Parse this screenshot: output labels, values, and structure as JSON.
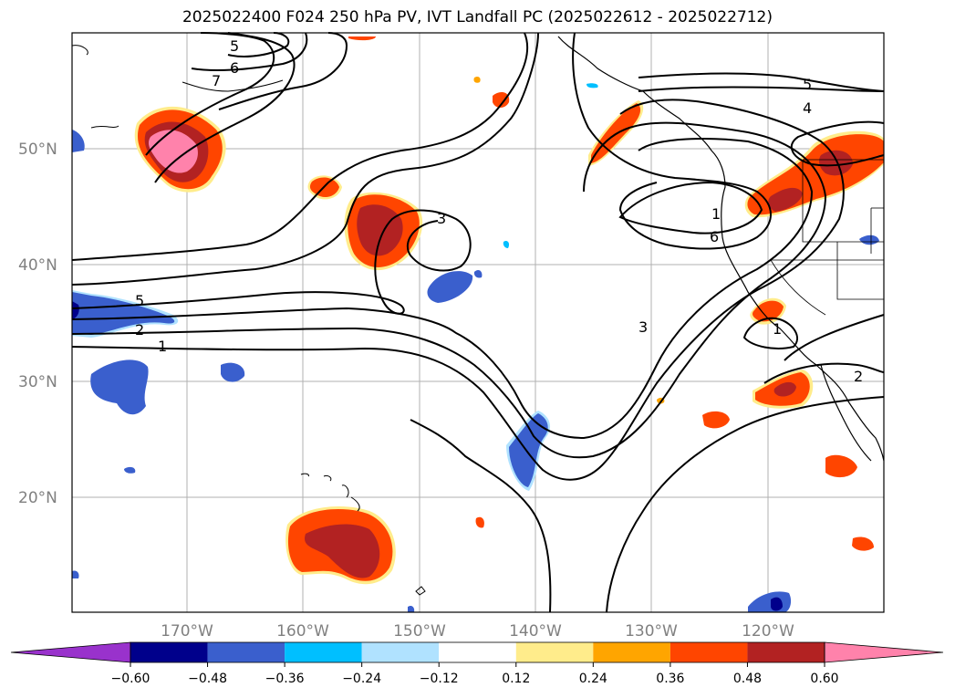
{
  "title": "2025022400 F024 250 hPa PV, IVT Landfall PC (2025022612 - 2025022712)",
  "lat_labels": [
    "50°N",
    "40°N",
    "30°N",
    "20°N"
  ],
  "lon_labels": [
    "170°W",
    "160°W",
    "150°W",
    "140°W",
    "130°W",
    "120°W"
  ],
  "contour_labels": [
    "5",
    "6",
    "7",
    "3",
    "5",
    "2",
    "1",
    "3",
    "5",
    "4",
    "1",
    "6",
    "1",
    "2"
  ],
  "colorbar": {
    "ticks": [
      "−0.60",
      "−0.48",
      "−0.36",
      "−0.24",
      "−0.12",
      "0.12",
      "0.24",
      "0.36",
      "0.48",
      "0.60"
    ],
    "colors": [
      "#9932cc",
      "#00008b",
      "#3a5fcd",
      "#00bfff",
      "#b0e2ff",
      "#ffffff",
      "#ffec8b",
      "#ffa500",
      "#ff4500",
      "#b22222",
      "#ff82ab"
    ]
  },
  "colors": {
    "land_outline": "#000000",
    "grid": "#b0b0b0",
    "contour": "#000000"
  }
}
